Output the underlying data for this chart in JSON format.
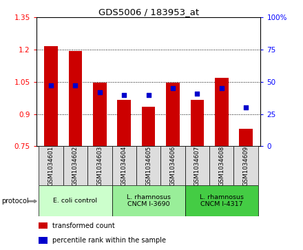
{
  "title": "GDS5006 / 183953_at",
  "samples": [
    "GSM1034601",
    "GSM1034602",
    "GSM1034603",
    "GSM1034604",
    "GSM1034605",
    "GSM1034606",
    "GSM1034607",
    "GSM1034608",
    "GSM1034609"
  ],
  "transformed_count": [
    1.215,
    1.195,
    1.045,
    0.965,
    0.935,
    1.045,
    0.965,
    1.07,
    0.83
  ],
  "percentile_rank": [
    47,
    47,
    42,
    40,
    40,
    45,
    41,
    45,
    30
  ],
  "bar_bottom": 0.75,
  "ylim_left": [
    0.75,
    1.35
  ],
  "ylim_right": [
    0,
    100
  ],
  "yticks_left": [
    0.75,
    0.9,
    1.05,
    1.2,
    1.35
  ],
  "yticks_right": [
    0,
    25,
    50,
    75,
    100
  ],
  "ytick_labels_left": [
    "0.75",
    "0.9",
    "1.05",
    "1.2",
    "1.35"
  ],
  "ytick_labels_right": [
    "0",
    "25",
    "50",
    "75",
    "100%"
  ],
  "bar_color": "#CC0000",
  "dot_color": "#0000CC",
  "sample_box_color": "#DDDDDD",
  "groups": [
    {
      "label": "E. coli control",
      "indices": [
        0,
        1,
        2
      ],
      "color": "#CCFFCC"
    },
    {
      "label": "L. rhamnosus\nCNCM I-3690",
      "indices": [
        3,
        4,
        5
      ],
      "color": "#99EE99"
    },
    {
      "label": "L. rhamnosus\nCNCM I-4317",
      "indices": [
        6,
        7,
        8
      ],
      "color": "#44CC44"
    }
  ],
  "protocol_label": "protocol",
  "legend_bar_label": "transformed count",
  "legend_dot_label": "percentile rank within the sample"
}
